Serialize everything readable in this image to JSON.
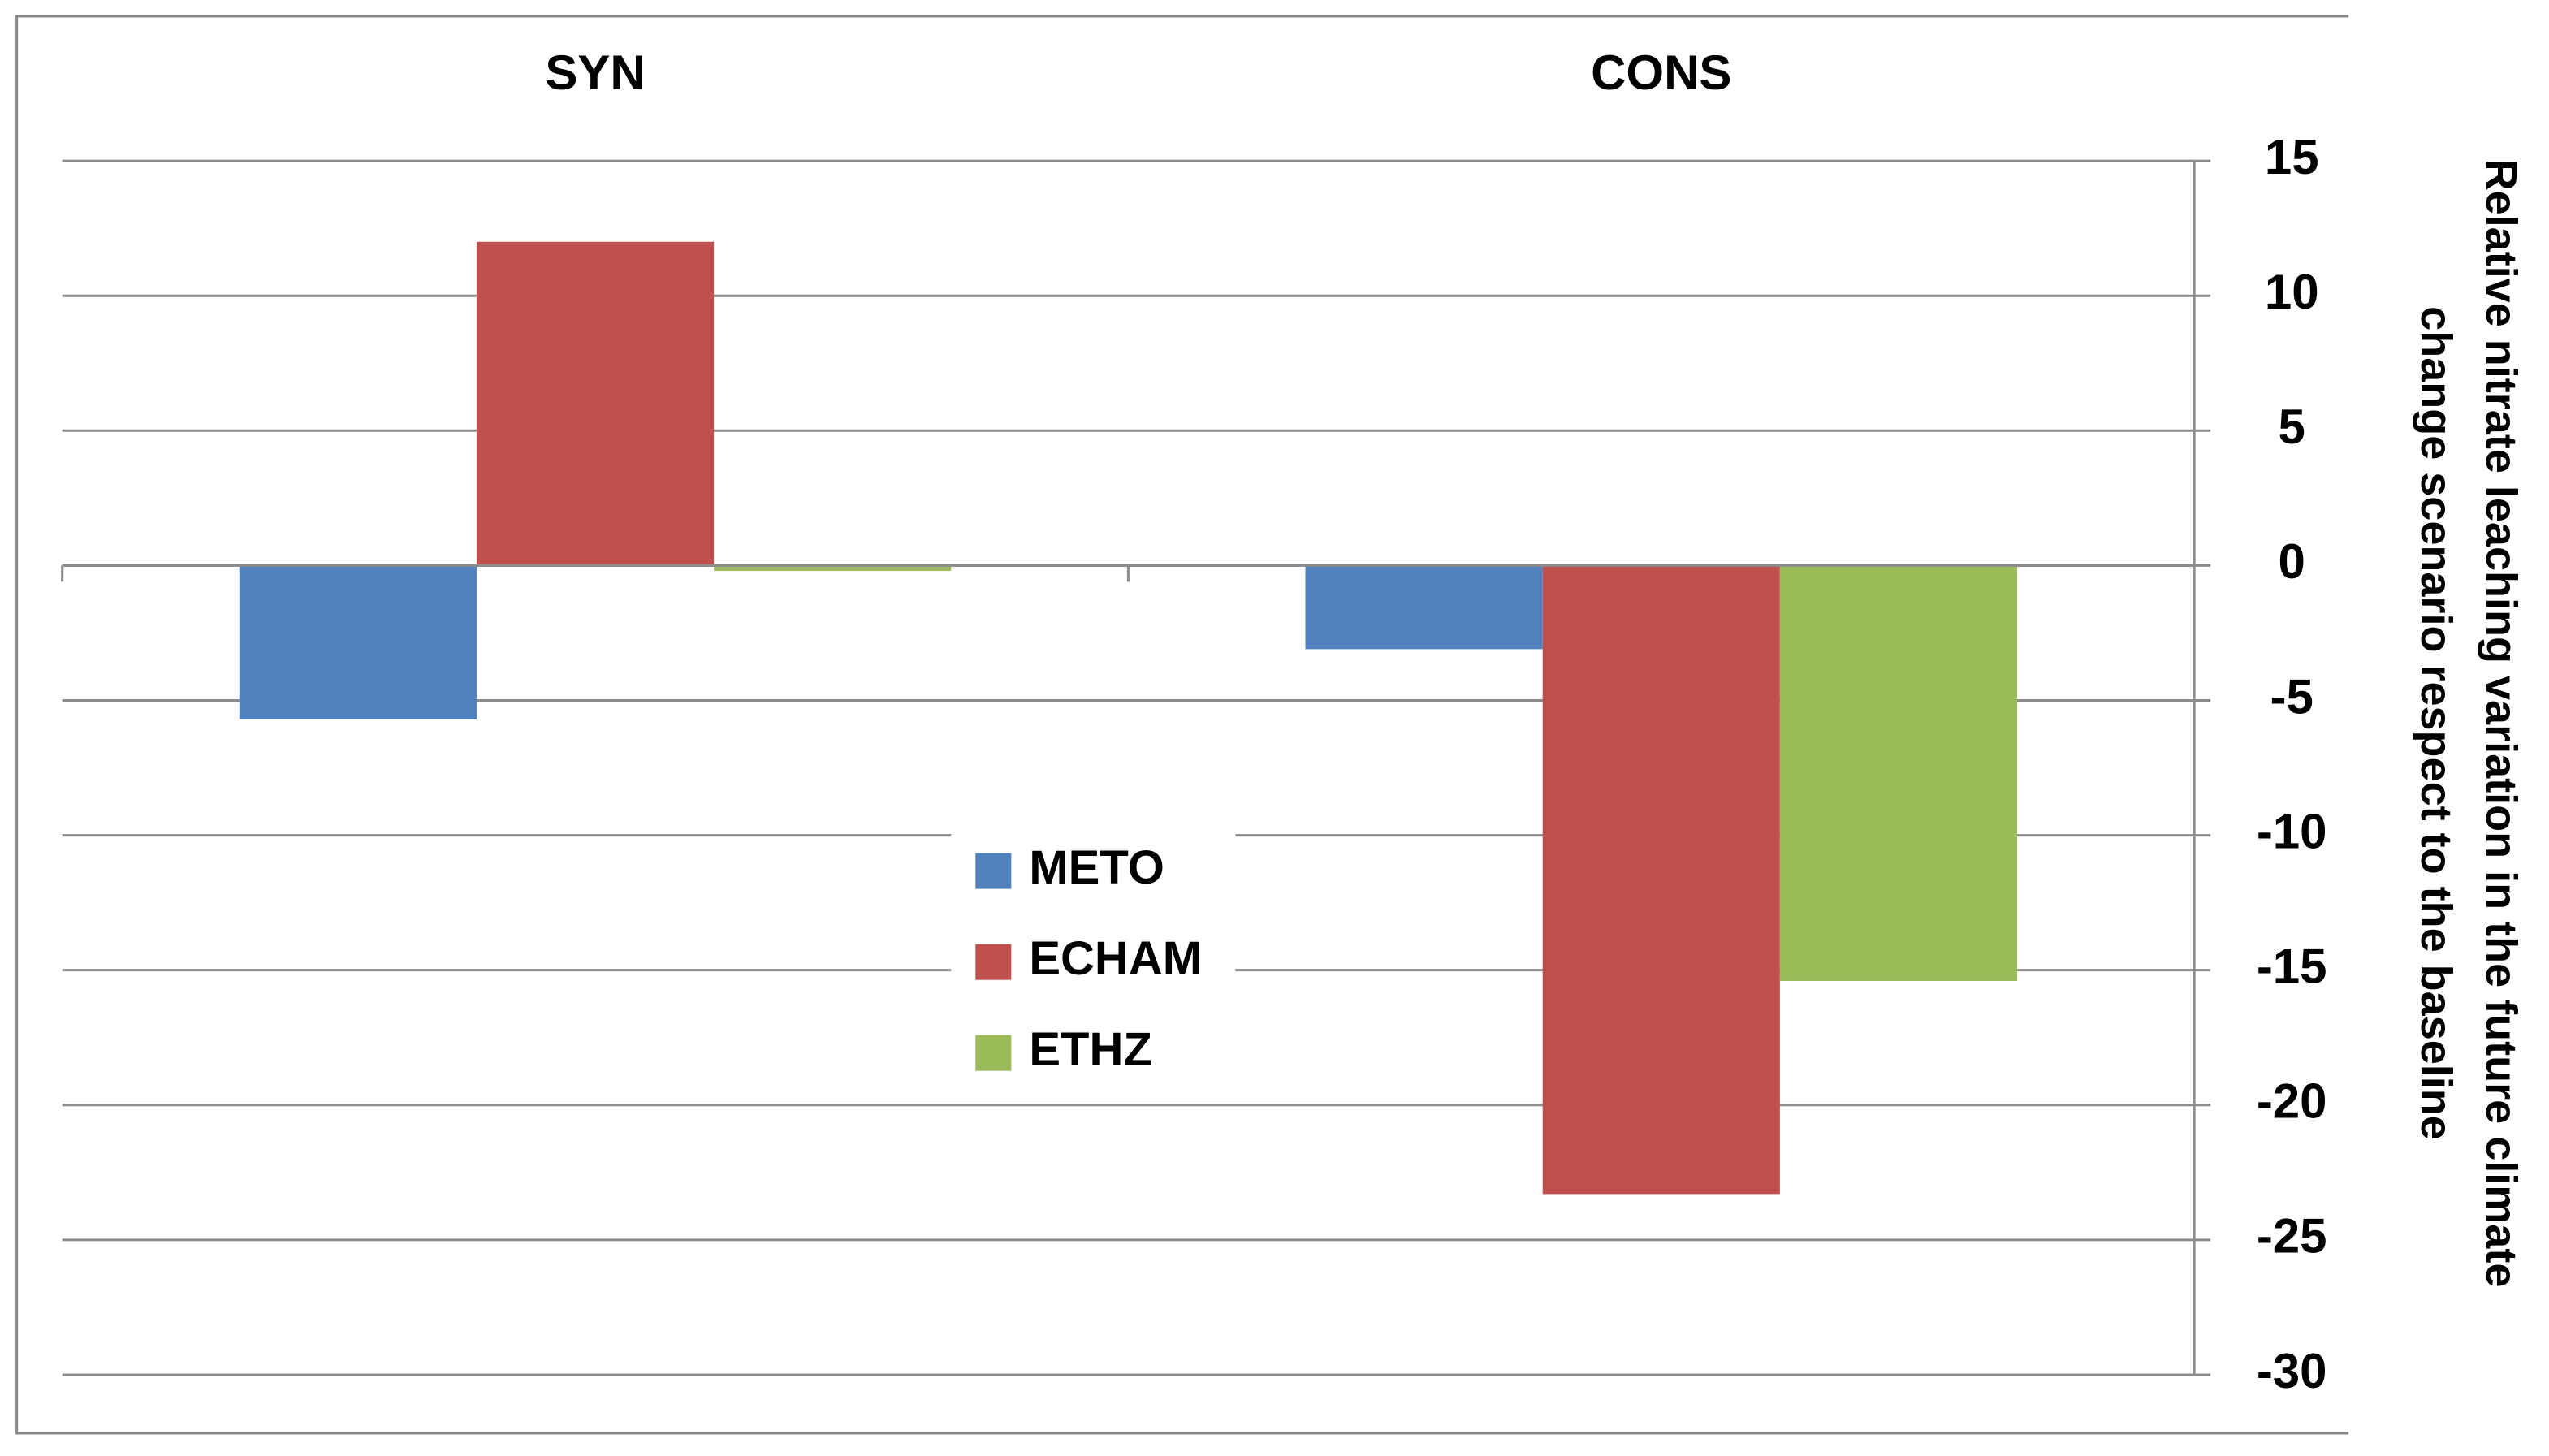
{
  "chart_data": {
    "type": "bar",
    "categories": [
      "SYN",
      "CONS"
    ],
    "series": [
      {
        "name": "METO",
        "color": "#4f81bd",
        "values": [
          -5.7,
          -3.1
        ]
      },
      {
        "name": "ECHAM",
        "color": "#c0504d",
        "values": [
          12,
          -23.3
        ]
      },
      {
        "name": "ETHZ",
        "color": "#9bbb59",
        "values": [
          -0.2,
          -15.4
        ]
      }
    ],
    "y_label": [
      "Relative nitrate leaching variation in the future climate",
      "change scenario respect to the baseline"
    ],
    "ylim": [
      -30,
      15
    ],
    "yticks": [
      15,
      10,
      5,
      0,
      -5,
      -10,
      -15,
      -20,
      -25,
      -30
    ],
    "grid": true,
    "legend": "center"
  }
}
